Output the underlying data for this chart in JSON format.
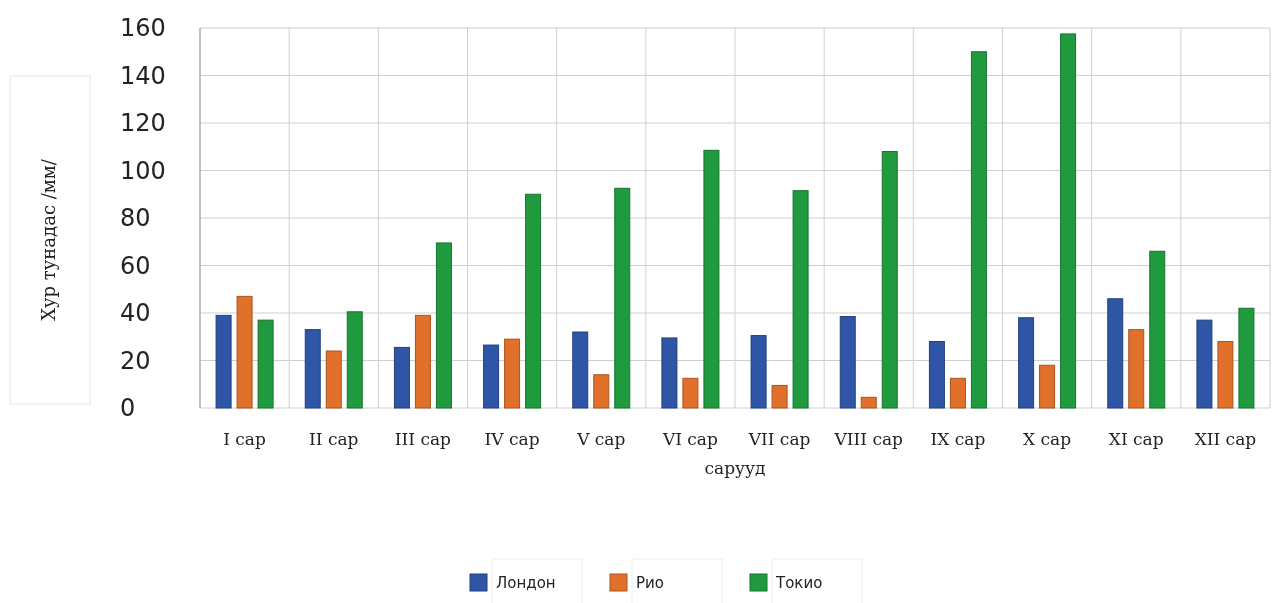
{
  "chart_data": {
    "type": "bar",
    "xlabel": "сарууд",
    "ylabel": "Хур тунадас /мм/",
    "categories": [
      "I сар",
      "II сар",
      "III сар",
      "IV сар",
      "V сар",
      "VI сар",
      "VII сар",
      "VIII сар",
      "IX сар",
      "X сар",
      "XI сар",
      "XII сар"
    ],
    "series": [
      {
        "name": "Лондон",
        "color": "#2e55a6",
        "values": [
          39,
          33,
          25.5,
          26.5,
          32,
          29.5,
          30.5,
          38.5,
          28,
          38,
          46,
          37
        ]
      },
      {
        "name": "Рио",
        "color": "#e0702a",
        "values": [
          47,
          24,
          39,
          29,
          14,
          12.5,
          9.5,
          4.5,
          12.5,
          18,
          33,
          28
        ]
      },
      {
        "name": "Токио",
        "color": "#1f9a3e",
        "values": [
          37,
          40.5,
          69.5,
          90,
          92.5,
          108.5,
          91.5,
          108,
          150,
          157.5,
          66,
          42
        ]
      }
    ],
    "ylim": [
      0,
      160
    ],
    "yticks": [
      0,
      20,
      40,
      60,
      80,
      100,
      120,
      140,
      160
    ],
    "grid": true,
    "legend": "bottom"
  }
}
